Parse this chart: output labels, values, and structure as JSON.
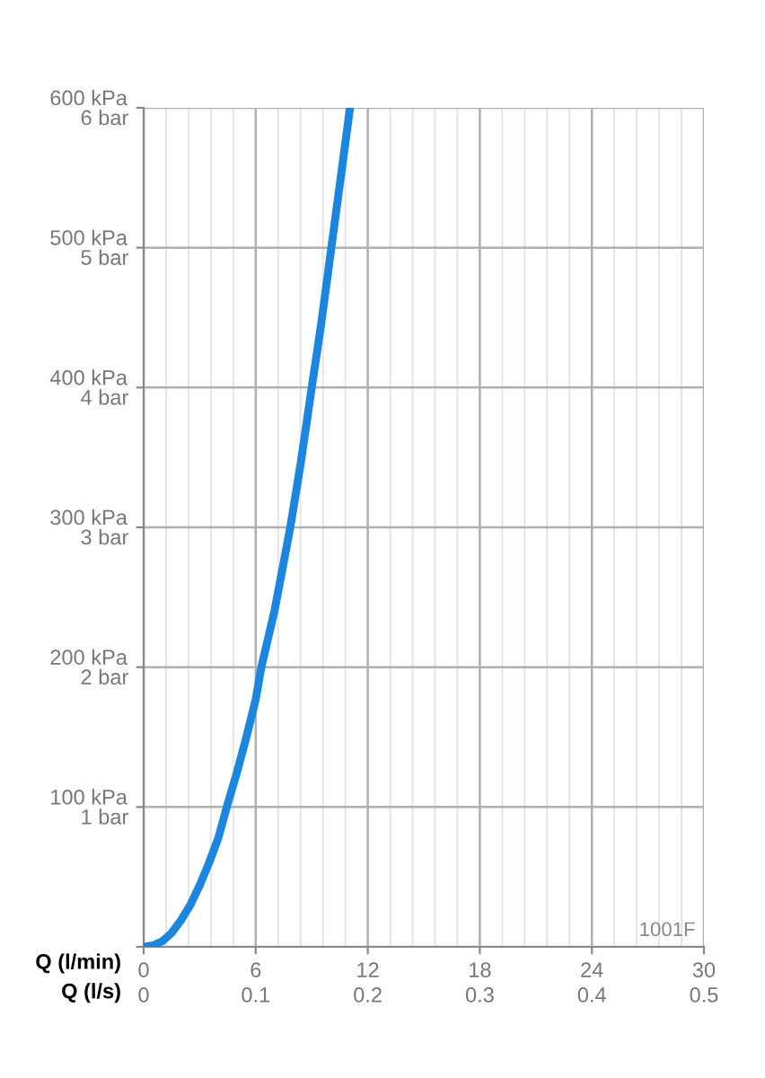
{
  "chart_data": {
    "type": "line",
    "xlabel": "Q (l/min)",
    "x2label": "Q (l/s)",
    "x": [
      0,
      0.5,
      1,
      1.5,
      2,
      2.5,
      3,
      3.5,
      4,
      4.45,
      5,
      5.5,
      6,
      6.3,
      7,
      7.4,
      7.85,
      8.4,
      9,
      9.5,
      10.05,
      10.55,
      11.05
    ],
    "series": [
      {
        "color": "#1a86e0",
        "values": [
          0,
          1,
          4,
          10,
          19,
          30,
          44,
          60,
          78,
          100,
          125,
          150,
          177,
          200,
          240,
          268,
          300,
          345,
          400,
          445,
          500,
          550,
          600
        ]
      }
    ],
    "xlim": [
      0,
      30
    ],
    "xticks": [
      0,
      6,
      12,
      18,
      24,
      30
    ],
    "x2lim": [
      0,
      0.5
    ],
    "x2ticks": [
      0,
      0.1,
      0.2,
      0.3,
      0.4,
      0.5
    ],
    "ylim": [
      0,
      600
    ],
    "yticks": [
      {
        "value": 0,
        "label": null
      },
      {
        "value": 100,
        "label": "100 kPa"
      },
      {
        "value": 200,
        "label": "200 kPa"
      },
      {
        "value": 300,
        "label": "300 kPa"
      },
      {
        "value": 400,
        "label": "400 kPa"
      },
      {
        "value": 500,
        "label": "500 kPa"
      },
      {
        "value": 600,
        "label": "600 kPa"
      }
    ],
    "y2lim": [
      0,
      6
    ],
    "y2ticks": [
      {
        "value": 0,
        "label": null
      },
      {
        "value": 1,
        "label": "1 bar"
      },
      {
        "value": 2,
        "label": "2 bar"
      },
      {
        "value": 3,
        "label": "3 bar"
      },
      {
        "value": 4,
        "label": "4 bar"
      },
      {
        "value": 5,
        "label": "5 bar"
      },
      {
        "value": 6,
        "label": "6 bar"
      }
    ],
    "grid": true,
    "marker": "none",
    "line_style": "solid",
    "legend": false,
    "annotations": [
      "1001F"
    ]
  }
}
